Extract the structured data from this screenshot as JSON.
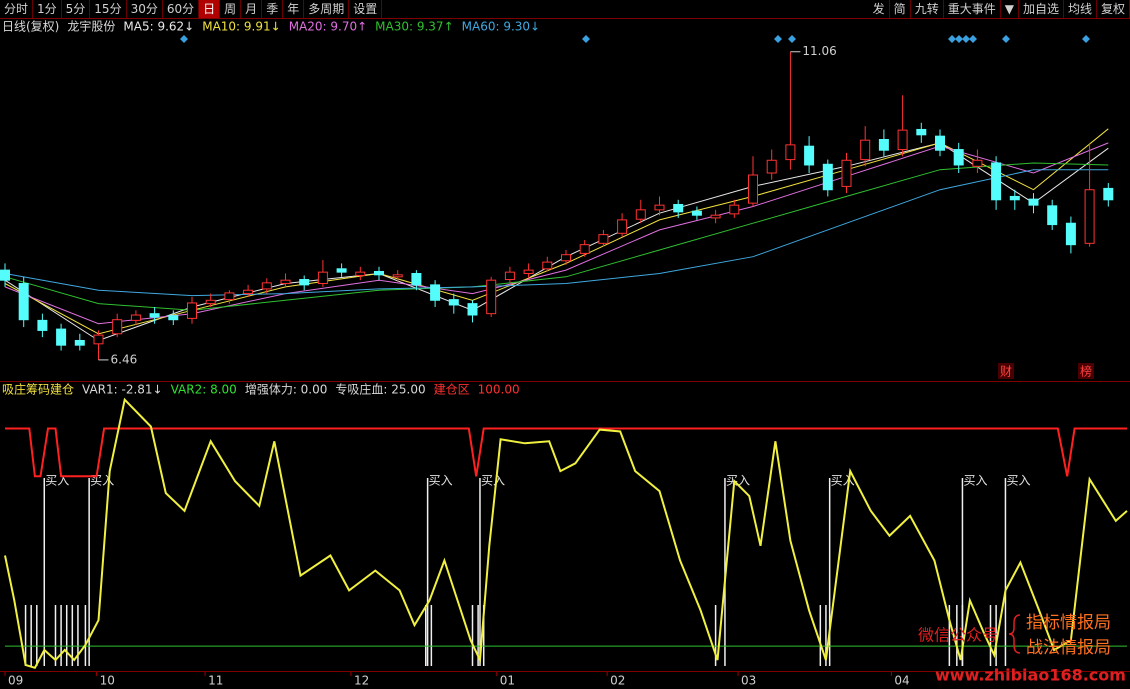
{
  "toolbar": {
    "left": [
      "分时",
      "1分",
      "5分",
      "15分",
      "30分",
      "60分",
      "日",
      "周",
      "月",
      "季",
      "年",
      "多周期",
      "设置"
    ],
    "active": "日",
    "right": [
      "发",
      "简",
      "九转",
      "重大事件",
      "▼",
      "加自选",
      "均线",
      "复权"
    ]
  },
  "chart_data": [
    {
      "type": "candlestick",
      "title": "日线(复权)",
      "stock": "龙宇股份",
      "xlim": [
        0,
        60
      ],
      "ylim": [
        6.16,
        11.31
      ],
      "up_color": "#ff3232",
      "down_color": "#54fcfc",
      "open": [
        7.8,
        7.6,
        7.05,
        6.92,
        6.75,
        6.7,
        6.85,
        7.05,
        7.15,
        7.12,
        7.08,
        7.3,
        7.36,
        7.45,
        7.52,
        7.6,
        7.66,
        7.6,
        7.82,
        7.72,
        7.78,
        7.7,
        7.75,
        7.58,
        7.36,
        7.3,
        7.15,
        7.66,
        7.75,
        7.82,
        7.94,
        8.05,
        8.2,
        8.35,
        8.56,
        8.7,
        8.78,
        8.68,
        8.58,
        8.64,
        8.8,
        9.25,
        9.45,
        9.65,
        9.38,
        9.05,
        9.45,
        9.75,
        9.6,
        9.9,
        9.8,
        9.6,
        9.35,
        9.4,
        8.9,
        8.86,
        8.76,
        8.5,
        8.2,
        9.02
      ],
      "high": [
        7.9,
        7.7,
        7.15,
        7.0,
        6.85,
        6.9,
        7.15,
        7.2,
        7.25,
        7.2,
        7.4,
        7.45,
        7.5,
        7.58,
        7.68,
        7.75,
        7.72,
        7.95,
        7.9,
        7.85,
        7.85,
        7.8,
        7.8,
        7.65,
        7.45,
        7.35,
        7.7,
        7.85,
        7.9,
        8.0,
        8.1,
        8.25,
        8.4,
        8.65,
        8.85,
        8.9,
        8.85,
        8.75,
        8.7,
        8.85,
        9.5,
        9.6,
        11.06,
        9.8,
        9.45,
        9.55,
        9.95,
        9.9,
        10.41,
        10.0,
        9.9,
        9.7,
        9.6,
        9.5,
        9.0,
        8.95,
        8.85,
        8.6,
        9.7,
        9.1
      ],
      "low": [
        7.55,
        6.95,
        6.8,
        6.6,
        6.6,
        6.46,
        6.8,
        6.98,
        7.0,
        6.98,
        7.0,
        7.25,
        7.3,
        7.4,
        7.45,
        7.55,
        7.5,
        7.55,
        7.7,
        7.65,
        7.65,
        7.62,
        7.5,
        7.25,
        7.15,
        7.02,
        7.1,
        7.6,
        7.68,
        7.78,
        7.88,
        8.0,
        8.15,
        8.3,
        8.5,
        8.62,
        8.58,
        8.55,
        8.5,
        8.58,
        8.75,
        9.15,
        9.3,
        9.25,
        8.9,
        8.95,
        9.35,
        9.5,
        9.5,
        9.7,
        9.5,
        9.25,
        9.25,
        8.7,
        8.7,
        8.65,
        8.4,
        8.05,
        8.15,
        8.75
      ],
      "close": [
        7.65,
        7.06,
        6.9,
        6.68,
        6.68,
        6.83,
        7.06,
        7.13,
        7.1,
        7.06,
        7.31,
        7.35,
        7.46,
        7.5,
        7.61,
        7.65,
        7.58,
        7.77,
        7.77,
        7.77,
        7.73,
        7.73,
        7.58,
        7.35,
        7.28,
        7.13,
        7.65,
        7.77,
        7.8,
        7.92,
        8.03,
        8.18,
        8.33,
        8.55,
        8.7,
        8.77,
        8.67,
        8.62,
        8.62,
        8.77,
        9.22,
        9.44,
        9.67,
        9.37,
        9.0,
        9.44,
        9.74,
        9.59,
        9.89,
        9.82,
        9.59,
        9.37,
        9.44,
        8.85,
        8.85,
        8.77,
        8.48,
        8.18,
        9.0,
        8.85
      ],
      "max_price": 11.06,
      "min_price": 6.46,
      "events": [
        "财",
        "榜"
      ],
      "ma": {
        "x": [
          0,
          5,
          10,
          15,
          20,
          25,
          30,
          35,
          40,
          45,
          50,
          55,
          59
        ],
        "series": [
          {
            "name": "MA5: 9.62↓",
            "color": "#e8e8e8",
            "values": [
              7.65,
              6.75,
              7.25,
              7.6,
              7.75,
              7.2,
              8.0,
              8.65,
              9.05,
              9.35,
              9.7,
              8.8,
              9.62
            ]
          },
          {
            "name": "MA10: 9.91↓",
            "color": "#f0e040",
            "values": [
              7.6,
              6.85,
              7.2,
              7.55,
              7.75,
              7.35,
              7.9,
              8.55,
              8.9,
              9.3,
              9.7,
              9.0,
              9.91
            ]
          },
          {
            "name": "MA20: 9.70↑",
            "color": "#e070e0",
            "values": [
              7.55,
              7.0,
              7.15,
              7.45,
              7.65,
              7.45,
              7.8,
              8.4,
              8.75,
              9.2,
              9.65,
              9.25,
              9.7
            ]
          },
          {
            "name": "MA30: 9.37↑",
            "color": "#30c030",
            "values": [
              7.7,
              7.3,
              7.2,
              7.35,
              7.5,
              7.55,
              7.7,
              8.1,
              8.5,
              8.9,
              9.3,
              9.4,
              9.37
            ]
          },
          {
            "name": "MA60: 9.30↓",
            "color": "#40a8e0",
            "values": [
              7.75,
              7.5,
              7.42,
              7.45,
              7.52,
              7.55,
              7.6,
              7.75,
              8.0,
              8.5,
              9.0,
              9.3,
              9.3
            ]
          }
        ]
      }
    },
    {
      "type": "line",
      "title": "吸庄筹码建仓",
      "legend": [
        {
          "text": "VAR1: -2.81↓",
          "color": "#d8d8d8"
        },
        {
          "text": "VAR2: 8.00",
          "color": "#30e030"
        },
        {
          "text": "增强体力: 0.00",
          "color": "#d8d8d8"
        },
        {
          "text": "专吸庄血: 25.00",
          "color": "#d8d8d8"
        },
        {
          "text": "建仓区",
          "color": "#ff3030"
        },
        {
          "text": "100.00",
          "color": "#ff3030"
        }
      ],
      "xlim": [
        0,
        60
      ],
      "ylim": [
        -11,
        114
      ],
      "xticks": [
        {
          "value": 0,
          "label": "09"
        },
        {
          "value": 4.9,
          "label": "10"
        },
        {
          "value": 10.7,
          "label": "11"
        },
        {
          "value": 18.5,
          "label": "12"
        },
        {
          "value": 26.3,
          "label": "01"
        },
        {
          "value": 32.2,
          "label": "02"
        },
        {
          "value": 39.2,
          "label": "03"
        },
        {
          "value": 47.4,
          "label": "04"
        }
      ],
      "series": [
        {
          "color": "#30c030",
          "x": [
            0,
            60
          ],
          "values": [
            0,
            0
          ]
        },
        {
          "color": "#ff2020",
          "x": [
            0,
            1.3,
            1.6,
            1.9,
            2.3,
            2.7,
            3.0,
            4.9,
            5.3,
            24.8,
            25.2,
            25.6,
            56.3,
            56.8,
            57.2,
            60
          ],
          "values": [
            100,
            100,
            78,
            78,
            100,
            100,
            78,
            78,
            100,
            100,
            78,
            100,
            100,
            78,
            100,
            100
          ]
        },
        {
          "color": "#f0f040",
          "x": [
            0,
            0.5,
            1.1,
            1.6,
            2.1,
            2.7,
            3.2,
            3.7,
            4.3,
            5.0,
            5.6,
            6.4,
            7.8,
            8.6,
            9.6,
            11.0,
            12.3,
            13.6,
            14.4,
            15.8,
            17.4,
            18.4,
            19.8,
            21.1,
            21.9,
            22.7,
            23.5,
            24.9,
            25.4,
            25.9,
            26.5,
            27.8,
            29.1,
            29.7,
            30.5,
            31.8,
            32.9,
            33.7,
            35.0,
            36.1,
            37.2,
            38.1,
            39.0,
            39.8,
            40.4,
            41.2,
            42.0,
            43.0,
            43.9,
            45.2,
            46.3,
            47.3,
            48.4,
            49.7,
            50.5,
            51.1,
            51.6,
            52.4,
            52.9,
            53.5,
            54.3,
            55.3,
            56.1,
            57.0,
            58.0,
            59.4,
            60.0
          ],
          "values": [
            41.6,
            21,
            -8.7,
            -10,
            -1.8,
            -6.4,
            -1.8,
            -6.4,
            0.5,
            11.9,
            80.4,
            113.2,
            100.9,
            70.3,
            62.1,
            94.1,
            75.8,
            64.4,
            94.1,
            32.4,
            41.6,
            25.6,
            34.7,
            25.6,
            9.6,
            21,
            39.3,
            2.7,
            -6.4,
            46.1,
            95,
            93.2,
            94.1,
            80.4,
            84,
            99.5,
            98.6,
            80.4,
            71.2,
            39.3,
            16.4,
            -6.4,
            75.8,
            68.9,
            46.1,
            94.1,
            48.4,
            16.4,
            -6.4,
            80.4,
            62.1,
            50.7,
            59.8,
            39.3,
            11.9,
            -6.4,
            21,
            5,
            -4.1,
            25.6,
            38.4,
            16.4,
            -1.8,
            2.7,
            76.7,
            57.5,
            62.1
          ]
        }
      ],
      "buy_label": "买入",
      "buy_x": [
        2.1,
        4.5,
        22.6,
        25.4,
        38.5,
        44.1,
        51.2,
        53.5
      ],
      "tick_x": [
        1.1,
        1.4,
        1.7,
        2.7,
        3.0,
        3.3,
        3.6,
        3.9,
        4.3,
        22.5,
        22.8,
        25.0,
        25.3,
        25.6,
        38.0,
        43.6,
        43.9,
        50.5,
        50.9,
        51.2,
        52.7,
        53.0
      ]
    }
  ],
  "watermark": {
    "label": "微信公众号",
    "lines": [
      "指标情报局",
      "战法情报局"
    ],
    "url": "www.zhibiao168.com"
  }
}
